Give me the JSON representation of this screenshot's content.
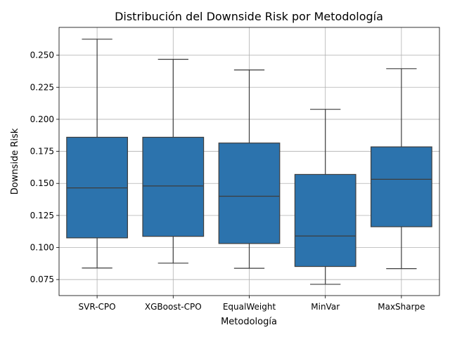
{
  "chart_data": {
    "type": "box",
    "title": "Distribución del Downside Risk por Metodología",
    "xlabel": "Metodología",
    "ylabel": "Downside Risk",
    "categories": [
      "SVR-CPO",
      "XGBoost-CPO",
      "EqualWeight",
      "MinVar",
      "MaxSharpe"
    ],
    "boxes": [
      {
        "category": "SVR-CPO",
        "whisker_low": 0.084,
        "q1": 0.1075,
        "median": 0.1465,
        "q3": 0.186,
        "whisker_high": 0.2625
      },
      {
        "category": "XGBoost-CPO",
        "whisker_low": 0.0878,
        "q1": 0.1087,
        "median": 0.148,
        "q3": 0.186,
        "whisker_high": 0.2468
      },
      {
        "category": "EqualWeight",
        "whisker_low": 0.0838,
        "q1": 0.1031,
        "median": 0.14,
        "q3": 0.1815,
        "whisker_high": 0.2385
      },
      {
        "category": "MinVar",
        "whisker_low": 0.0713,
        "q1": 0.0852,
        "median": 0.109,
        "q3": 0.157,
        "whisker_high": 0.2078
      },
      {
        "category": "MaxSharpe",
        "whisker_low": 0.0835,
        "q1": 0.1162,
        "median": 0.1532,
        "q3": 0.1785,
        "whisker_high": 0.2395
      }
    ],
    "yticks": [
      "0.075",
      "0.100",
      "0.125",
      "0.150",
      "0.175",
      "0.200",
      "0.225",
      "0.250"
    ],
    "ylim": [
      0.0625,
      0.2717
    ],
    "grid": true,
    "box_color": "#2c73ad",
    "line_color": "#3d3d3d",
    "grid_color": "#b0b0b0"
  }
}
